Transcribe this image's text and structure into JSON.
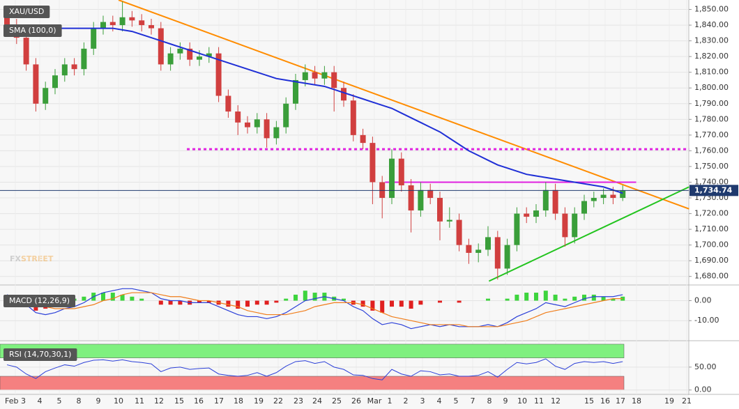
{
  "chart_data": [
    {
      "type": "candlestick",
      "title": "XAU/USD",
      "open": [
        1845,
        1840,
        1832,
        1815,
        1790,
        1800,
        1808,
        1815,
        1812,
        1825,
        1838,
        1842,
        1840,
        1845,
        1843,
        1840,
        1838,
        1815,
        1822,
        1825,
        1818,
        1820,
        1822,
        1795,
        1785,
        1778,
        1775,
        1780,
        1768,
        1775,
        1790,
        1805,
        1810,
        1806,
        1810,
        1800,
        1792,
        1770,
        1765,
        1740,
        1730,
        1755,
        1738,
        1722,
        1735,
        1730,
        1715,
        1716,
        1700,
        1695,
        1697,
        1705,
        1685,
        1700,
        1720,
        1718,
        1722,
        1735,
        1720,
        1705,
        1720,
        1728,
        1730,
        1732,
        1730
      ],
      "high": [
        1849,
        1844,
        1836,
        1819,
        1804,
        1812,
        1819,
        1819,
        1829,
        1842,
        1846,
        1846,
        1855,
        1849,
        1847,
        1844,
        1842,
        1826,
        1829,
        1829,
        1824,
        1826,
        1826,
        1799,
        1789,
        1782,
        1784,
        1784,
        1779,
        1794,
        1809,
        1815,
        1814,
        1814,
        1814,
        1804,
        1796,
        1774,
        1769,
        1744,
        1761,
        1759,
        1742,
        1740,
        1739,
        1734,
        1724,
        1720,
        1704,
        1701,
        1712,
        1709,
        1704,
        1724,
        1724,
        1726,
        1740,
        1739,
        1724,
        1724,
        1732,
        1734,
        1736,
        1737,
        1738
      ],
      "low": [
        1836,
        1828,
        1811,
        1785,
        1786,
        1796,
        1804,
        1808,
        1808,
        1821,
        1834,
        1836,
        1836,
        1839,
        1836,
        1834,
        1811,
        1811,
        1818,
        1814,
        1814,
        1816,
        1791,
        1781,
        1770,
        1771,
        1771,
        1762,
        1764,
        1771,
        1786,
        1801,
        1802,
        1802,
        1785,
        1788,
        1766,
        1761,
        1726,
        1717,
        1726,
        1734,
        1708,
        1718,
        1726,
        1703,
        1711,
        1696,
        1688,
        1689,
        1693,
        1678,
        1681,
        1696,
        1714,
        1714,
        1718,
        1716,
        1699,
        1701,
        1716,
        1724,
        1726,
        1726,
        1728
      ],
      "close": [
        1840,
        1832,
        1815,
        1790,
        1800,
        1808,
        1815,
        1812,
        1825,
        1838,
        1842,
        1840,
        1845,
        1843,
        1840,
        1838,
        1815,
        1822,
        1825,
        1818,
        1820,
        1822,
        1795,
        1785,
        1778,
        1775,
        1780,
        1768,
        1775,
        1790,
        1805,
        1810,
        1806,
        1810,
        1800,
        1792,
        1770,
        1765,
        1740,
        1730,
        1755,
        1738,
        1722,
        1735,
        1730,
        1715,
        1716,
        1700,
        1695,
        1697,
        1705,
        1685,
        1700,
        1720,
        1718,
        1722,
        1735,
        1720,
        1705,
        1720,
        1728,
        1730,
        1732,
        1730,
        1734.74
      ],
      "up_color": "#3a9e3a",
      "down_color": "#d13f3f",
      "series": [
        {
          "name": "SMA (100,0)",
          "color": "#1f2fd6",
          "values": [
            1840,
            1840,
            1840,
            1840,
            1839,
            1838,
            1838,
            1838,
            1838,
            1838,
            1838,
            1838,
            1837,
            1836,
            1834,
            1832,
            1830,
            1828,
            1826,
            1824,
            1822,
            1820,
            1818,
            1816,
            1814,
            1812,
            1810,
            1808,
            1806,
            1805,
            1804,
            1803,
            1802,
            1801,
            1799,
            1797,
            1795,
            1793,
            1791,
            1789,
            1787,
            1784,
            1781,
            1778,
            1775,
            1772,
            1768,
            1764,
            1760,
            1757,
            1754,
            1751,
            1749,
            1747,
            1745,
            1744,
            1743,
            1742,
            1741,
            1740,
            1739,
            1738,
            1737,
            1735,
            1733
          ]
        }
      ],
      "lines": [
        {
          "color": "#ff8c00",
          "dash": false,
          "x": [
            11.6,
            70.9
          ],
          "values": [
            1856,
            1723
          ]
        },
        {
          "color": "#22c41e",
          "dash": false,
          "x": [
            50.1,
            70.9
          ],
          "values": [
            1677,
            1737
          ]
        },
        {
          "color": "#e020e0",
          "dash": true,
          "x": [
            18.7,
            70.9
          ],
          "values": [
            1761,
            1761
          ]
        },
        {
          "color": "#e020e0",
          "dash": false,
          "x": [
            39.3,
            65.4
          ],
          "values": [
            1740,
            1740
          ]
        }
      ],
      "last_price": {
        "value": 1734.74,
        "label": "1,734.74"
      },
      "ylim": [
        1675,
        1856
      ],
      "yticks": [
        {
          "value": 1680,
          "label": "1,680.00"
        },
        {
          "value": 1690,
          "label": "1,690.00"
        },
        {
          "value": 1700,
          "label": "1,700.00"
        },
        {
          "value": 1710,
          "label": "1,710.00"
        },
        {
          "value": 1720,
          "label": "1,720.00"
        },
        {
          "value": 1730,
          "label": "1,730.00"
        },
        {
          "value": 1740,
          "label": "1,740.00"
        },
        {
          "value": 1750,
          "label": "1,750.00"
        },
        {
          "value": 1760,
          "label": "1,760.00"
        },
        {
          "value": 1770,
          "label": "1,770.00"
        },
        {
          "value": 1780,
          "label": "1,780.00"
        },
        {
          "value": 1790,
          "label": "1,790.00"
        },
        {
          "value": 1800,
          "label": "1,800.00"
        },
        {
          "value": 1810,
          "label": "1,810.00"
        },
        {
          "value": 1820,
          "label": "1,820.00"
        },
        {
          "value": 1830,
          "label": "1,830.00"
        },
        {
          "value": 1840,
          "label": "1,840.00"
        },
        {
          "value": 1850,
          "label": "1,850.00"
        }
      ],
      "grid": true,
      "watermark": [
        "FX",
        "STREET"
      ],
      "x_labels": [
        "Feb 3",
        "4",
        "5",
        "8",
        "9",
        "10",
        "11",
        "12",
        "15",
        "16",
        "17",
        "18",
        "19",
        "22",
        "23",
        "24",
        "25",
        "26",
        "Mar",
        "1",
        "2",
        "3",
        "4",
        "5",
        "7",
        "8",
        "9",
        "10",
        "11",
        "12",
        "15",
        "16",
        "17",
        "18",
        "19",
        "21"
      ]
    },
    {
      "type": "macd",
      "title": "MACD (12,26,9)",
      "histogram": [
        1,
        -1,
        -3,
        -5,
        -4,
        -2,
        0,
        1,
        2,
        4,
        4,
        4,
        3,
        2,
        1,
        0,
        -2,
        -2,
        -2,
        -2,
        -1,
        -1,
        -2,
        -3,
        -4,
        -3,
        -2,
        -2,
        -1,
        1,
        3,
        5,
        4,
        4,
        2,
        1,
        -2,
        -3,
        -5,
        -6,
        -3,
        -3,
        -4,
        -2,
        0,
        -1,
        0,
        -1,
        0,
        0,
        1,
        0,
        1,
        3,
        4,
        4,
        5,
        3,
        1,
        2,
        3,
        3,
        2,
        1,
        2
      ],
      "macd": [
        3,
        1,
        -2,
        -6,
        -7,
        -6,
        -4,
        -3,
        -1,
        2,
        4,
        5,
        6,
        6,
        5,
        4,
        1,
        0,
        0,
        -1,
        -1,
        -1,
        -3,
        -5,
        -7,
        -8,
        -8,
        -9,
        -8,
        -6,
        -3,
        0,
        1,
        2,
        1,
        0,
        -3,
        -5,
        -9,
        -12,
        -11,
        -12,
        -14,
        -13,
        -12,
        -13,
        -12,
        -13,
        -13,
        -13,
        -12,
        -13,
        -11,
        -8,
        -6,
        -4,
        -1,
        -2,
        -3,
        -1,
        1,
        2,
        2,
        2,
        3
      ],
      "signal": [
        2,
        2,
        1,
        -1,
        -3,
        -4,
        -4,
        -4,
        -3,
        -2,
        0,
        1,
        3,
        4,
        4,
        4,
        3,
        2,
        2,
        1,
        0,
        0,
        -1,
        -2,
        -3,
        -5,
        -6,
        -7,
        -7,
        -7,
        -6,
        -5,
        -3,
        -2,
        -1,
        -1,
        -1,
        -2,
        -4,
        -6,
        -8,
        -9,
        -10,
        -11,
        -12,
        -12,
        -12,
        -12,
        -13,
        -13,
        -13,
        -13,
        -12,
        -11,
        -10,
        -8,
        -6,
        -5,
        -4,
        -3,
        -2,
        -1,
        0,
        1,
        1
      ],
      "macd_color": "#2b3fd8",
      "signal_color": "#f07d1a",
      "up_color": "#3ed43e",
      "down_color": "#e02020",
      "ylim": [
        -19,
        7.5
      ],
      "yticks": [
        {
          "value": 0,
          "label": "0.00"
        },
        {
          "value": -10,
          "label": "-10.00"
        }
      ]
    },
    {
      "type": "rsi",
      "title": "RSI (14,70,30,1)",
      "values": [
        55,
        50,
        35,
        25,
        40,
        48,
        55,
        52,
        60,
        65,
        66,
        63,
        66,
        62,
        60,
        57,
        40,
        48,
        50,
        45,
        47,
        48,
        35,
        32,
        30,
        32,
        38,
        30,
        38,
        52,
        62,
        64,
        58,
        62,
        50,
        45,
        33,
        32,
        25,
        22,
        45,
        35,
        30,
        42,
        40,
        33,
        35,
        30,
        30,
        32,
        40,
        28,
        45,
        60,
        57,
        60,
        68,
        52,
        45,
        58,
        62,
        60,
        62,
        58,
        62
      ],
      "color": "#2b3fd8",
      "zones": [
        {
          "from": 70,
          "to": 100,
          "color": "#7ff07f"
        },
        {
          "from": 0,
          "to": 30,
          "color": "#f58080"
        }
      ],
      "ylim": [
        -8,
        103
      ],
      "yticks": [
        {
          "value": 0,
          "label": "0.00"
        },
        {
          "value": 50,
          "label": "50.00"
        }
      ]
    }
  ]
}
